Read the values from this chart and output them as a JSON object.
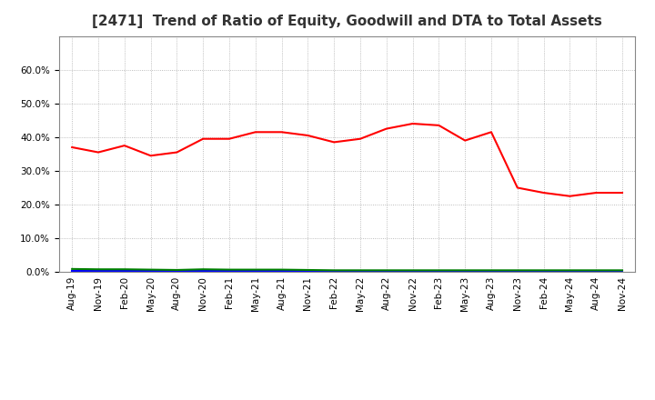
{
  "title": "[2471]  Trend of Ratio of Equity, Goodwill and DTA to Total Assets",
  "x_labels": [
    "Aug-19",
    "Nov-19",
    "Feb-20",
    "May-20",
    "Aug-20",
    "Nov-20",
    "Feb-21",
    "May-21",
    "Aug-21",
    "Nov-21",
    "Feb-22",
    "May-22",
    "Aug-22",
    "Nov-22",
    "Feb-23",
    "May-23",
    "Aug-23",
    "Nov-23",
    "Feb-24",
    "May-24",
    "Aug-24",
    "Nov-24"
  ],
  "equity": [
    37.0,
    35.5,
    37.5,
    34.5,
    35.5,
    39.5,
    39.5,
    41.5,
    41.5,
    40.5,
    38.5,
    39.5,
    42.5,
    44.0,
    43.5,
    39.0,
    41.5,
    25.0,
    23.5,
    22.5,
    23.5,
    23.5
  ],
  "goodwill": [
    0.3,
    0.3,
    0.3,
    0.3,
    0.3,
    0.3,
    0.3,
    0.3,
    0.3,
    0.3,
    0.3,
    0.3,
    0.3,
    0.3,
    0.3,
    0.3,
    0.3,
    0.3,
    0.3,
    0.3,
    0.3,
    0.3
  ],
  "dta": [
    0.9,
    0.8,
    0.8,
    0.7,
    0.6,
    0.8,
    0.7,
    0.7,
    0.7,
    0.6,
    0.5,
    0.5,
    0.5,
    0.5,
    0.5,
    0.5,
    0.5,
    0.5,
    0.5,
    0.5,
    0.5,
    0.5
  ],
  "equity_color": "#FF0000",
  "goodwill_color": "#0000FF",
  "dta_color": "#008000",
  "ylim": [
    0,
    70
  ],
  "yticks": [
    0,
    10,
    20,
    30,
    40,
    50,
    60
  ],
  "background_color": "#FFFFFF",
  "grid_color": "#AAAAAA",
  "title_fontsize": 11,
  "tick_fontsize": 7.5,
  "legend_fontsize": 9
}
